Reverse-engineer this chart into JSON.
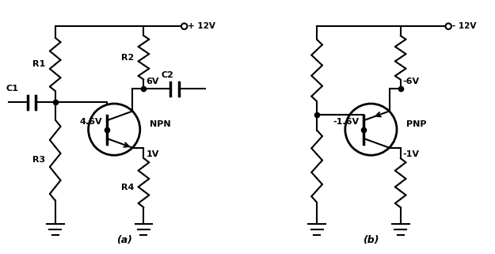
{
  "bg_color": "#ffffff",
  "line_color": "black",
  "line_width": 1.5,
  "fig_width": 6.25,
  "fig_height": 3.21,
  "label_a": "(a)",
  "label_b": "(b)",
  "npn_label": "NPN",
  "pnp_label": "PNP",
  "v12": "+ 12V",
  "vm12": "- 12V",
  "v_46": "4.6V",
  "v_6": "6V",
  "v_1": "1V",
  "v_m16": "-1.6V",
  "v_m6": "-6V",
  "v_m1": "-1V",
  "r1": "R1",
  "r2": "R2",
  "r3": "R3",
  "r4": "R4",
  "c1": "C1",
  "c2": "C2"
}
